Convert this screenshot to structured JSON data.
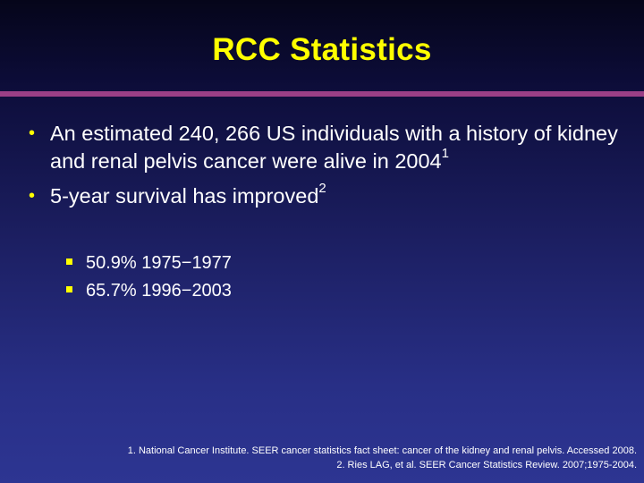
{
  "slide": {
    "title": "RCC Statistics",
    "bullets": [
      {
        "text": "An estimated 240, 266 US individuals with a history of kidney and renal pelvis cancer were alive in 2004",
        "ref": "1"
      },
      {
        "text": "5-year survival has improved",
        "ref": "2"
      }
    ],
    "sub_bullets": [
      "50.9% 1975−1977",
      "65.7% 1996−2003"
    ],
    "references": [
      "1. National Cancer Institute. SEER cancer statistics fact sheet: cancer of the kidney and renal pelvis. Accessed 2008.",
      "2. Ries LAG, et al. SEER Cancer Statistics Review. 2007;1975-2004."
    ],
    "colors": {
      "title": "#ffff00",
      "rule": "#9a3f86",
      "text": "#ffffff",
      "bullet": "#ffff00"
    }
  }
}
